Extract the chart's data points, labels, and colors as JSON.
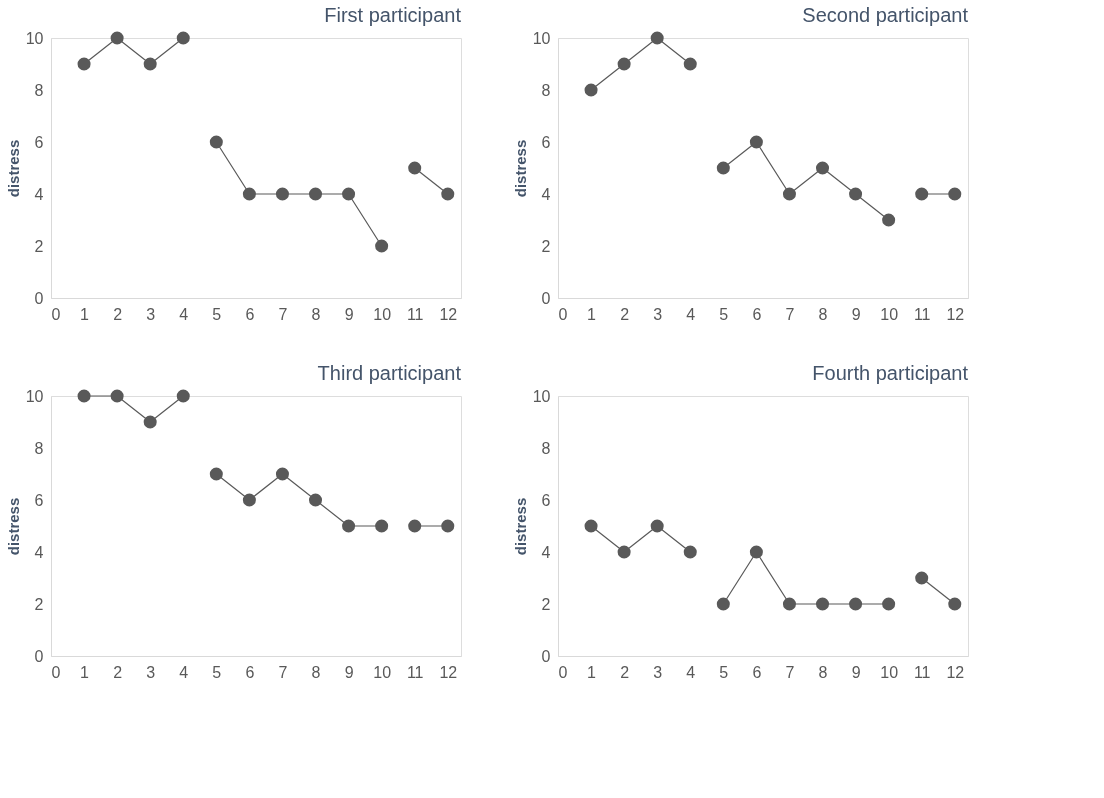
{
  "chart_data": [
    {
      "type": "line",
      "title": "First participant",
      "ylabel": "distress",
      "xlim": [
        0,
        12.4
      ],
      "xticks": [
        0,
        1,
        2,
        3,
        4,
        5,
        6,
        7,
        8,
        9,
        10,
        11,
        12
      ],
      "ylim": [
        0,
        10
      ],
      "yticks": [
        0,
        2,
        4,
        6,
        8,
        10
      ],
      "grid": false,
      "marker": "circle",
      "line_style": "solid",
      "series": [
        {
          "color": "#595959",
          "x": [
            1,
            2,
            3,
            4
          ],
          "values": [
            9,
            10,
            9,
            10
          ]
        },
        {
          "color": "#595959",
          "x": [
            5,
            6,
            7,
            8,
            9,
            10
          ],
          "values": [
            6,
            4,
            4,
            4,
            4,
            2
          ]
        },
        {
          "color": "#595959",
          "x": [
            11,
            12
          ],
          "values": [
            5,
            4
          ]
        }
      ]
    },
    {
      "type": "line",
      "title": "Second participant",
      "ylabel": "distress",
      "xlim": [
        0,
        12.4
      ],
      "xticks": [
        0,
        1,
        2,
        3,
        4,
        5,
        6,
        7,
        8,
        9,
        10,
        11,
        12
      ],
      "ylim": [
        0,
        10
      ],
      "yticks": [
        0,
        2,
        4,
        6,
        8,
        10
      ],
      "grid": false,
      "marker": "circle",
      "line_style": "solid",
      "series": [
        {
          "color": "#595959",
          "x": [
            1,
            2,
            3,
            4
          ],
          "values": [
            8,
            9,
            10,
            9
          ]
        },
        {
          "color": "#595959",
          "x": [
            5,
            6,
            7,
            8,
            9,
            10
          ],
          "values": [
            5,
            6,
            4,
            5,
            4,
            3
          ]
        },
        {
          "color": "#595959",
          "x": [
            11,
            12
          ],
          "values": [
            4,
            4
          ]
        }
      ]
    },
    {
      "type": "line",
      "title": "Third participant",
      "ylabel": "distress",
      "xlim": [
        0,
        12.4
      ],
      "xticks": [
        0,
        1,
        2,
        3,
        4,
        5,
        6,
        7,
        8,
        9,
        10,
        11,
        12
      ],
      "ylim": [
        0,
        10
      ],
      "yticks": [
        0,
        2,
        4,
        6,
        8,
        10
      ],
      "grid": false,
      "marker": "circle",
      "line_style": "solid",
      "series": [
        {
          "color": "#595959",
          "x": [
            1,
            2,
            3,
            4
          ],
          "values": [
            10,
            10,
            9,
            10
          ]
        },
        {
          "color": "#595959",
          "x": [
            5,
            6,
            7,
            8,
            9,
            10
          ],
          "values": [
            7,
            6,
            7,
            6,
            5,
            5
          ]
        },
        {
          "color": "#595959",
          "x": [
            11,
            12
          ],
          "values": [
            5,
            5
          ]
        }
      ]
    },
    {
      "type": "line",
      "title": "Fourth participant",
      "ylabel": "distress",
      "xlim": [
        0,
        12.4
      ],
      "xticks": [
        0,
        1,
        2,
        3,
        4,
        5,
        6,
        7,
        8,
        9,
        10,
        11,
        12
      ],
      "ylim": [
        0,
        10
      ],
      "yticks": [
        0,
        2,
        4,
        6,
        8,
        10
      ],
      "grid": false,
      "marker": "circle",
      "line_style": "solid",
      "series": [
        {
          "color": "#595959",
          "x": [
            1,
            2,
            3,
            4
          ],
          "values": [
            5,
            4,
            5,
            4
          ]
        },
        {
          "color": "#595959",
          "x": [
            5,
            6,
            7,
            8,
            9,
            10
          ],
          "values": [
            2,
            4,
            2,
            2,
            2,
            2
          ]
        },
        {
          "color": "#595959",
          "x": [
            11,
            12
          ],
          "values": [
            3,
            2
          ]
        }
      ]
    }
  ]
}
